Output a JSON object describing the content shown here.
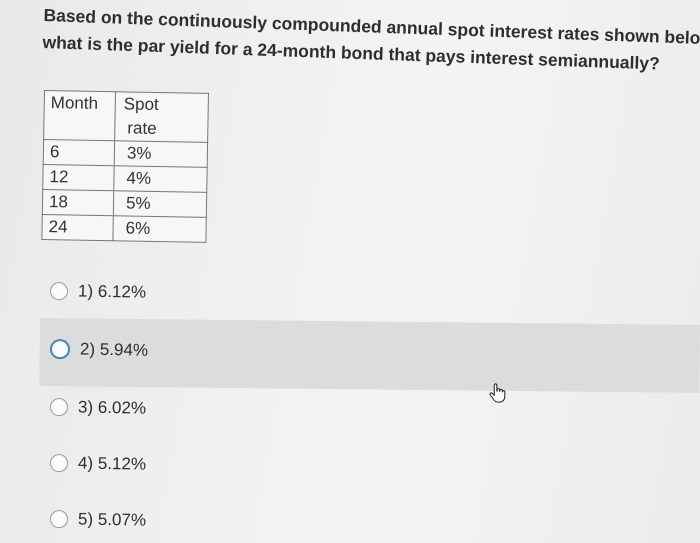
{
  "question": {
    "line1": "Based on the continuously compounded annual spot interest rates shown below,",
    "line2": "what is the par yield for a 24-month bond that pays interest semiannually?"
  },
  "table": {
    "headers": {
      "month": "Month",
      "spot_line1": "Spot",
      "spot_line2": "rate"
    },
    "rows": [
      {
        "month": "6",
        "rate": "3%"
      },
      {
        "month": "12",
        "rate": "4%"
      },
      {
        "month": "18",
        "rate": "5%"
      },
      {
        "month": "24",
        "rate": "6%"
      }
    ]
  },
  "options": [
    {
      "label": "1) 6.12%"
    },
    {
      "label": "2) 5.94%"
    },
    {
      "label": "3) 6.02%"
    },
    {
      "label": "4) 5.12%"
    },
    {
      "label": "5) 5.07%"
    }
  ],
  "cursor_icon": "hand-pointer-icon",
  "colors": {
    "hover_band": "#dcdcda",
    "radio_focus": "#3a86c8"
  }
}
